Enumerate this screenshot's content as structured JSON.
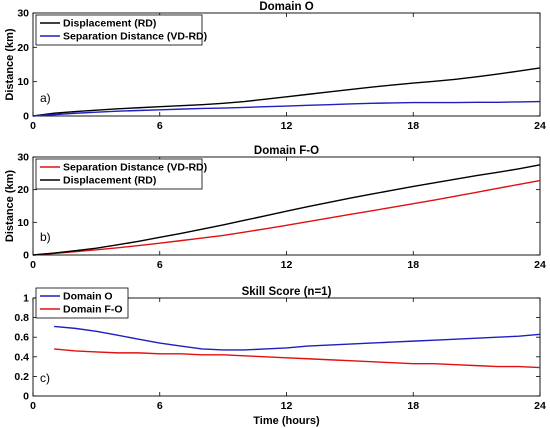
{
  "chart_data": [
    {
      "type": "line",
      "title": "Domain O",
      "panel_label": "a)",
      "xlabel": "",
      "ylabel": "Distance (km)",
      "xlim": [
        0,
        24
      ],
      "ylim": [
        0,
        30
      ],
      "xticks": [
        0,
        6,
        12,
        18,
        24
      ],
      "yticks": [
        0,
        10,
        20,
        30
      ],
      "grid": false,
      "legend_position": "top-left",
      "series": [
        {
          "name": "Displacement (RD)",
          "color": "#000000",
          "x": [
            0,
            1,
            2,
            3,
            4,
            5,
            6,
            7,
            8,
            9,
            10,
            11,
            12,
            13,
            14,
            15,
            16,
            17,
            18,
            19,
            20,
            21,
            22,
            23,
            24
          ],
          "y": [
            0,
            0.8,
            1.3,
            1.7,
            2.1,
            2.4,
            2.7,
            3.0,
            3.3,
            3.7,
            4.2,
            4.9,
            5.6,
            6.3,
            7.0,
            7.7,
            8.4,
            9.0,
            9.6,
            10.1,
            10.7,
            11.4,
            12.2,
            13.1,
            14.0
          ]
        },
        {
          "name": "Separation Distance (VD-RD)",
          "color": "#1f1fbf",
          "x": [
            0,
            1,
            2,
            3,
            4,
            5,
            6,
            7,
            8,
            9,
            10,
            11,
            12,
            13,
            14,
            15,
            16,
            17,
            18,
            19,
            20,
            21,
            22,
            23,
            24
          ],
          "y": [
            0,
            0.4,
            0.8,
            1.1,
            1.4,
            1.6,
            1.8,
            2.0,
            2.2,
            2.3,
            2.5,
            2.7,
            2.9,
            3.1,
            3.3,
            3.5,
            3.7,
            3.8,
            3.9,
            3.9,
            3.9,
            4.0,
            4.0,
            4.1,
            4.2
          ]
        }
      ]
    },
    {
      "type": "line",
      "title": "Domain F-O",
      "panel_label": "b)",
      "xlabel": "",
      "ylabel": "Distance (km)",
      "xlim": [
        0,
        24
      ],
      "ylim": [
        0,
        30
      ],
      "xticks": [
        0,
        6,
        12,
        18,
        24
      ],
      "yticks": [
        0,
        10,
        20,
        30
      ],
      "grid": false,
      "legend_position": "top-left",
      "series": [
        {
          "name": "Separation Distance (VD-RD)",
          "color": "#e01010",
          "x": [
            0,
            1,
            2,
            3,
            4,
            5,
            6,
            7,
            8,
            9,
            10,
            11,
            12,
            13,
            14,
            15,
            16,
            17,
            18,
            19,
            20,
            21,
            22,
            23,
            24
          ],
          "y": [
            0,
            0.5,
            1.0,
            1.6,
            2.2,
            2.9,
            3.6,
            4.4,
            5.2,
            6.0,
            7.0,
            8.0,
            9.1,
            10.2,
            11.3,
            12.4,
            13.5,
            14.6,
            15.7,
            16.8,
            18.0,
            19.2,
            20.4,
            21.6,
            22.8
          ]
        },
        {
          "name": "Displacement (RD)",
          "color": "#000000",
          "x": [
            0,
            1,
            2,
            3,
            4,
            5,
            6,
            7,
            8,
            9,
            10,
            11,
            12,
            13,
            14,
            15,
            16,
            17,
            18,
            19,
            20,
            21,
            22,
            23,
            24
          ],
          "y": [
            0,
            0.6,
            1.3,
            2.1,
            3.1,
            4.2,
            5.4,
            6.6,
            7.9,
            9.2,
            10.6,
            12.0,
            13.4,
            14.8,
            16.1,
            17.4,
            18.6,
            19.8,
            21.0,
            22.1,
            23.2,
            24.3,
            25.3,
            26.4,
            27.6
          ]
        }
      ]
    },
    {
      "type": "line",
      "title": "Skill Score (n=1)",
      "panel_label": "c)",
      "xlabel": "Time (hours)",
      "ylabel": "",
      "xlim": [
        0,
        24
      ],
      "ylim": [
        0,
        1
      ],
      "xticks": [
        0,
        6,
        12,
        18,
        24
      ],
      "yticks": [
        0,
        0.2,
        0.4,
        0.6,
        0.8,
        1
      ],
      "grid": false,
      "legend_position": "top-left",
      "series": [
        {
          "name": "Domain O",
          "color": "#1f1fbf",
          "x": [
            1,
            2,
            3,
            4,
            5,
            6,
            7,
            8,
            9,
            10,
            11,
            12,
            13,
            14,
            15,
            16,
            17,
            18,
            19,
            20,
            21,
            22,
            23,
            24
          ],
          "y": [
            0.71,
            0.69,
            0.66,
            0.62,
            0.58,
            0.54,
            0.51,
            0.48,
            0.47,
            0.47,
            0.48,
            0.49,
            0.51,
            0.52,
            0.53,
            0.54,
            0.55,
            0.56,
            0.57,
            0.58,
            0.59,
            0.6,
            0.61,
            0.63
          ]
        },
        {
          "name": "Domain F-O",
          "color": "#e01010",
          "x": [
            1,
            2,
            3,
            4,
            5,
            6,
            7,
            8,
            9,
            10,
            11,
            12,
            13,
            14,
            15,
            16,
            17,
            18,
            19,
            20,
            21,
            22,
            23,
            24
          ],
          "y": [
            0.48,
            0.46,
            0.45,
            0.44,
            0.44,
            0.43,
            0.43,
            0.42,
            0.42,
            0.41,
            0.4,
            0.39,
            0.38,
            0.37,
            0.36,
            0.35,
            0.34,
            0.33,
            0.33,
            0.32,
            0.31,
            0.3,
            0.3,
            0.29
          ]
        }
      ]
    }
  ]
}
